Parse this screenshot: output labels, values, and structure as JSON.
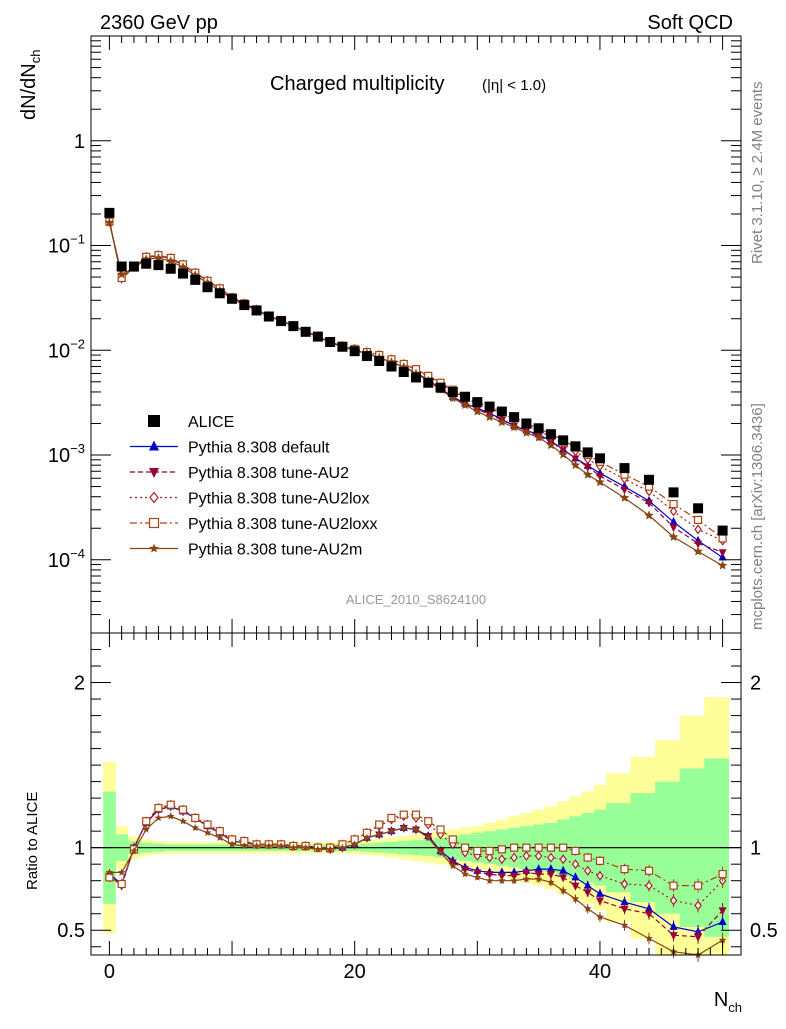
{
  "header": {
    "left": "2360 GeV pp",
    "right": "Soft QCD"
  },
  "side_texts": {
    "rivet": "Rivet 3.1.10, ≥ 2.4M events",
    "mcplots": "mcplots.cern.ch [arXiv:1306.3436]"
  },
  "colors": {
    "alice": "#000000",
    "default": "#0000cc",
    "au2": "#990033",
    "au2lox": "#aa2222",
    "au2loxx": "#aa4411",
    "au2m": "#884411",
    "band_inner": "#99ff99",
    "band_outer": "#ffff99"
  },
  "chart_data": [
    {
      "type": "scatter",
      "panel": "main",
      "title": "Charged multiplicity",
      "title_suffix": "(|η| < 1.0)",
      "ylabel": "dN/dN",
      "ylabel_sub": "ch",
      "yscale": "log",
      "ylim": [
        2e-05,
        10
      ],
      "xlim": [
        -1.5,
        51.5
      ],
      "y_ticks": [
        {
          "v": 0.0001,
          "b": "10",
          "e": "−4"
        },
        {
          "v": 0.001,
          "b": "10",
          "e": "−3"
        },
        {
          "v": 0.01,
          "b": "10",
          "e": "−2"
        },
        {
          "v": 0.1,
          "b": "10",
          "e": "−1"
        },
        {
          "v": 1,
          "b": "1",
          "e": ""
        }
      ],
      "watermark": "ALICE_2010_S8624100",
      "legend_position": "bottom-left",
      "x": [
        0,
        1,
        2,
        3,
        4,
        5,
        6,
        7,
        8,
        9,
        10,
        11,
        12,
        13,
        14,
        15,
        16,
        17,
        18,
        19,
        20,
        21,
        22,
        23,
        24,
        25,
        26,
        27,
        28,
        29,
        30,
        31,
        32,
        33,
        34,
        35,
        36,
        37,
        38,
        39,
        40,
        42,
        44,
        46,
        48,
        50
      ],
      "series": [
        {
          "name": "ALICE",
          "key": "alice",
          "marker": "square",
          "y": [
            0.205,
            0.063,
            0.063,
            0.067,
            0.065,
            0.06,
            0.054,
            0.047,
            0.04,
            0.035,
            0.031,
            0.027,
            0.024,
            0.021,
            0.019,
            0.017,
            0.015,
            0.0135,
            0.012,
            0.0108,
            0.0098,
            0.0088,
            0.0079,
            0.007,
            0.0062,
            0.0055,
            0.0049,
            0.0044,
            0.004,
            0.0036,
            0.0032,
            0.0029,
            0.0026,
            0.0023,
            0.002,
            0.0018,
            0.00158,
            0.00138,
            0.00121,
            0.00106,
            0.00093,
            0.00075,
            0.00058,
            0.00044,
            0.00031,
            0.00019
          ]
        },
        {
          "name": "Pythia 8.308 default",
          "key": "default",
          "marker": "triangle-up",
          "y": [
            0.172,
            0.049,
            0.062,
            0.077,
            0.08,
            0.075,
            0.065,
            0.055,
            0.046,
            0.039,
            0.032,
            0.028,
            0.0245,
            0.0212,
            0.0192,
            0.0171,
            0.0151,
            0.0135,
            0.0119,
            0.0108,
            0.01,
            0.0093,
            0.0085,
            0.0077,
            0.0069,
            0.0061,
            0.0052,
            0.0043,
            0.0036,
            0.0031,
            0.0028,
            0.0025,
            0.0022,
            0.0019,
            0.00172,
            0.00157,
            0.00136,
            0.00113,
            0.00093,
            0.00079,
            0.00067,
            0.0005,
            0.000365,
            0.00023,
            0.000152,
            0.000105
          ]
        },
        {
          "name": "Pythia 8.308 tune-AU2",
          "key": "au2",
          "marker": "triangle-down",
          "y": [
            0.17,
            0.048,
            0.062,
            0.077,
            0.08,
            0.075,
            0.065,
            0.055,
            0.046,
            0.039,
            0.032,
            0.028,
            0.0245,
            0.0212,
            0.0192,
            0.0171,
            0.0151,
            0.0135,
            0.0119,
            0.0108,
            0.01,
            0.0093,
            0.0085,
            0.0077,
            0.0069,
            0.0061,
            0.0052,
            0.0043,
            0.0036,
            0.0031,
            0.00272,
            0.00245,
            0.00216,
            0.00191,
            0.0017,
            0.00151,
            0.00133,
            0.00113,
            0.00093,
            0.00077,
            0.00063,
            0.00047,
            0.00035,
            0.000205,
            0.000143,
            0.000118
          ]
        },
        {
          "name": "Pythia 8.308 tune-AU2lox",
          "key": "au2lox",
          "marker": "diamond-open",
          "y": [
            0.169,
            0.049,
            0.062,
            0.078,
            0.081,
            0.076,
            0.066,
            0.055,
            0.046,
            0.039,
            0.032,
            0.028,
            0.0245,
            0.0213,
            0.0193,
            0.0172,
            0.0152,
            0.0136,
            0.012,
            0.011,
            0.0103,
            0.0096,
            0.009,
            0.0082,
            0.0074,
            0.0065,
            0.0056,
            0.0048,
            0.0041,
            0.0035,
            0.0031,
            0.0028,
            0.0025,
            0.0022,
            0.0019,
            0.0017,
            0.0015,
            0.00128,
            0.00108,
            0.00091,
            0.00078,
            0.00059,
            0.00045,
            0.00029,
            0.000195,
            0.000152
          ]
        },
        {
          "name": "Pythia 8.308 tune-AU2loxx",
          "key": "au2loxx",
          "marker": "square-open",
          "y": [
            0.169,
            0.049,
            0.062,
            0.078,
            0.081,
            0.076,
            0.066,
            0.055,
            0.046,
            0.039,
            0.032,
            0.028,
            0.0245,
            0.0213,
            0.0193,
            0.0172,
            0.0152,
            0.0136,
            0.012,
            0.011,
            0.0103,
            0.0096,
            0.009,
            0.0082,
            0.0074,
            0.0066,
            0.0057,
            0.0049,
            0.0042,
            0.0036,
            0.0032,
            0.0029,
            0.0026,
            0.0023,
            0.002,
            0.0018,
            0.00158,
            0.00139,
            0.00118,
            0.001,
            0.00086,
            0.00065,
            0.0005,
            0.00034,
            0.00024,
            0.00016
          ]
        },
        {
          "name": "Pythia 8.308 tune-AU2m",
          "key": "au2m",
          "marker": "star",
          "y": [
            0.165,
            0.053,
            0.061,
            0.074,
            0.076,
            0.071,
            0.062,
            0.052,
            0.044,
            0.037,
            0.031,
            0.027,
            0.024,
            0.021,
            0.019,
            0.017,
            0.015,
            0.0134,
            0.0119,
            0.0108,
            0.01,
            0.0093,
            0.0085,
            0.0077,
            0.0069,
            0.006,
            0.0051,
            0.0042,
            0.0035,
            0.003,
            0.0026,
            0.0023,
            0.00206,
            0.00184,
            0.00163,
            0.00147,
            0.00124,
            0.00101,
            0.0008,
            0.00065,
            0.00055,
            0.00039,
            0.000265,
            0.000165,
            0.00012,
            8.8e-05
          ]
        }
      ]
    },
    {
      "type": "scatter",
      "panel": "ratio",
      "ylabel": "Ratio to ALICE",
      "xlabel": "N",
      "xlabel_sub": "ch",
      "xlim": [
        -1.5,
        51.5
      ],
      "ylim": [
        0.35,
        2.3
      ],
      "y_ticks": [
        {
          "v": 0.5,
          "label": "0.5"
        },
        {
          "v": 1,
          "label": "1"
        },
        {
          "v": 2,
          "label": "2"
        }
      ],
      "x_ticks": [
        {
          "v": 0,
          "label": "0"
        },
        {
          "v": 20,
          "label": "20"
        },
        {
          "v": 40,
          "label": "40"
        }
      ],
      "band_edges": [
        -0.5,
        0.5,
        1.5,
        2.5,
        3.5,
        4.5,
        5.5,
        6.5,
        7.5,
        8.5,
        9.5,
        10.5,
        11.5,
        12.5,
        13.5,
        14.5,
        15.5,
        16.5,
        17.5,
        18.5,
        19.5,
        20.5,
        21.5,
        22.5,
        23.5,
        24.5,
        25.5,
        26.5,
        27.5,
        28.5,
        29.5,
        30.5,
        31.5,
        32.5,
        33.5,
        34.5,
        35.5,
        36.5,
        37.5,
        38.5,
        39.5,
        40.5,
        42.5,
        44.5,
        46.5,
        48.5,
        50.5
      ],
      "band_inner": [
        0.34,
        0.08,
        0.04,
        0.03,
        0.025,
        0.02,
        0.02,
        0.02,
        0.02,
        0.02,
        0.02,
        0.02,
        0.02,
        0.02,
        0.02,
        0.02,
        0.02,
        0.02,
        0.02,
        0.02,
        0.02,
        0.025,
        0.03,
        0.035,
        0.04,
        0.045,
        0.05,
        0.06,
        0.07,
        0.08,
        0.09,
        0.1,
        0.11,
        0.12,
        0.13,
        0.14,
        0.15,
        0.17,
        0.19,
        0.21,
        0.23,
        0.27,
        0.33,
        0.4,
        0.48,
        0.54
      ],
      "band_outer": [
        0.52,
        0.13,
        0.07,
        0.05,
        0.04,
        0.035,
        0.035,
        0.035,
        0.035,
        0.035,
        0.035,
        0.035,
        0.035,
        0.035,
        0.035,
        0.035,
        0.035,
        0.035,
        0.035,
        0.035,
        0.04,
        0.045,
        0.05,
        0.06,
        0.07,
        0.08,
        0.09,
        0.1,
        0.11,
        0.12,
        0.13,
        0.15,
        0.17,
        0.19,
        0.21,
        0.23,
        0.25,
        0.28,
        0.31,
        0.34,
        0.38,
        0.45,
        0.55,
        0.65,
        0.8,
        0.91
      ],
      "reference_line": 1,
      "x": [
        0,
        1,
        2,
        3,
        4,
        5,
        6,
        7,
        8,
        9,
        10,
        11,
        12,
        13,
        14,
        15,
        16,
        17,
        18,
        19,
        20,
        21,
        22,
        23,
        24,
        25,
        26,
        27,
        28,
        29,
        30,
        31,
        32,
        33,
        34,
        35,
        36,
        37,
        38,
        39,
        40,
        42,
        44,
        46,
        48,
        50
      ],
      "series": [
        {
          "name": "Pythia 8.308 default",
          "key": "default",
          "marker": "triangle-up",
          "y": [
            0.84,
            0.78,
            1.0,
            1.15,
            1.23,
            1.25,
            1.22,
            1.18,
            1.13,
            1.09,
            1.04,
            1.03,
            1.02,
            1.02,
            1.02,
            1.01,
            1.01,
            1.0,
            0.99,
            1.0,
            1.02,
            1.06,
            1.08,
            1.1,
            1.12,
            1.11,
            1.07,
            0.98,
            0.92,
            0.88,
            0.86,
            0.85,
            0.85,
            0.85,
            0.86,
            0.87,
            0.87,
            0.86,
            0.82,
            0.77,
            0.72,
            0.67,
            0.63,
            0.52,
            0.49,
            0.55
          ]
        },
        {
          "name": "Pythia 8.308 tune-AU2",
          "key": "au2",
          "marker": "triangle-down",
          "y": [
            0.83,
            0.77,
            1.0,
            1.15,
            1.23,
            1.25,
            1.22,
            1.18,
            1.13,
            1.09,
            1.04,
            1.03,
            1.02,
            1.02,
            1.02,
            1.01,
            1.01,
            1.0,
            0.99,
            1.0,
            1.02,
            1.06,
            1.08,
            1.1,
            1.12,
            1.11,
            1.07,
            0.98,
            0.91,
            0.87,
            0.85,
            0.84,
            0.83,
            0.83,
            0.85,
            0.84,
            0.84,
            0.82,
            0.77,
            0.73,
            0.68,
            0.63,
            0.6,
            0.47,
            0.46,
            0.62
          ]
        },
        {
          "name": "Pythia 8.308 tune-AU2lox",
          "key": "au2lox",
          "marker": "diamond-open",
          "y": [
            0.82,
            0.78,
            0.99,
            1.16,
            1.24,
            1.26,
            1.23,
            1.18,
            1.14,
            1.1,
            1.05,
            1.04,
            1.02,
            1.02,
            1.02,
            1.01,
            1.01,
            1.0,
            1.0,
            1.02,
            1.05,
            1.09,
            1.13,
            1.17,
            1.19,
            1.18,
            1.14,
            1.08,
            1.02,
            0.97,
            0.95,
            0.94,
            0.93,
            0.94,
            0.95,
            0.95,
            0.94,
            0.93,
            0.9,
            0.86,
            0.83,
            0.78,
            0.77,
            0.68,
            0.65,
            0.8
          ]
        },
        {
          "name": "Pythia 8.308 tune-AU2loxx",
          "key": "au2loxx",
          "marker": "square-open",
          "y": [
            0.82,
            0.78,
            0.99,
            1.16,
            1.24,
            1.26,
            1.23,
            1.18,
            1.14,
            1.1,
            1.05,
            1.04,
            1.02,
            1.02,
            1.02,
            1.01,
            1.01,
            1.0,
            1.0,
            1.02,
            1.05,
            1.09,
            1.14,
            1.18,
            1.2,
            1.2,
            1.16,
            1.11,
            1.05,
            1.0,
            0.98,
            0.98,
            0.99,
            1.0,
            1.0,
            1.0,
            1.0,
            1.0,
            0.98,
            0.94,
            0.92,
            0.87,
            0.86,
            0.77,
            0.77,
            0.84
          ]
        },
        {
          "name": "Pythia 8.308 tune-AU2m",
          "key": "au2m",
          "marker": "star",
          "y": [
            0.85,
            0.85,
            0.98,
            1.11,
            1.18,
            1.19,
            1.16,
            1.12,
            1.09,
            1.06,
            1.02,
            1.01,
            1.01,
            1.01,
            1.01,
            1.0,
            1.0,
            0.99,
            0.99,
            1.0,
            1.02,
            1.06,
            1.08,
            1.1,
            1.12,
            1.11,
            1.06,
            0.97,
            0.89,
            0.84,
            0.82,
            0.8,
            0.8,
            0.8,
            0.81,
            0.81,
            0.79,
            0.74,
            0.69,
            0.63,
            0.58,
            0.53,
            0.45,
            0.37,
            0.35,
            0.44
          ]
        }
      ]
    }
  ]
}
